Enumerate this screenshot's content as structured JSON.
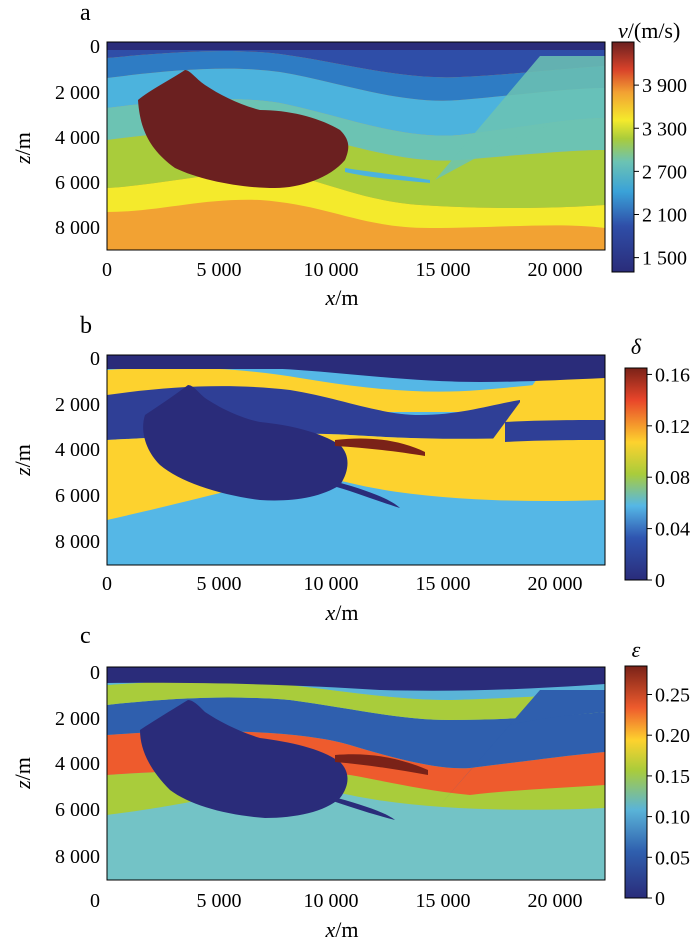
{
  "figure": {
    "panels": [
      "a",
      "b",
      "c"
    ]
  },
  "chart_data": [
    {
      "type": "heatmap",
      "panel_label": "a",
      "title": "",
      "x_var": "x",
      "x_unit": "/m",
      "y_var": "z",
      "y_unit": "/m",
      "xlim": [
        0,
        22200
      ],
      "ylim": [
        9200,
        0
      ],
      "x_ticks": [
        0,
        5000,
        10000,
        15000,
        20000
      ],
      "x_tick_labels": [
        "0",
        "5 000",
        "10 000",
        "15 000",
        "20 000"
      ],
      "y_ticks": [
        0,
        2000,
        4000,
        6000,
        8000
      ],
      "y_tick_labels": [
        "0",
        "2 000",
        "4 000",
        "6 000",
        "8 000"
      ],
      "colorbar": {
        "var": "v",
        "unit": "/(m/s)",
        "range": [
          1300,
          4500
        ],
        "ticks": [
          1500,
          2100,
          2700,
          3300,
          3900
        ],
        "tick_labels": [
          "1 500",
          "2 100",
          "2 700",
          "3 300",
          "3 900"
        ]
      },
      "regions": [
        {
          "name": "background",
          "value": 1500,
          "color": "#2a2c7a"
        },
        {
          "name": "layer-1",
          "value": 1900,
          "color": "#2f4ea8"
        },
        {
          "name": "layer-2",
          "value": 2250,
          "color": "#2e7cc4"
        },
        {
          "name": "layer-3",
          "value": 2500,
          "color": "#4cb3dd"
        },
        {
          "name": "layer-4",
          "value": 2750,
          "color": "#6cc3b3"
        },
        {
          "name": "layer-5",
          "value": 3100,
          "color": "#a9cc3b"
        },
        {
          "name": "layer-6",
          "value": 3500,
          "color": "#f4ea2c"
        },
        {
          "name": "layer-7",
          "value": 3800,
          "color": "#f2a233"
        },
        {
          "name": "salt-body",
          "value": 4400,
          "color": "#6b2020"
        }
      ]
    },
    {
      "type": "heatmap",
      "panel_label": "b",
      "title": "",
      "x_var": "x",
      "x_unit": "/m",
      "y_var": "z",
      "y_unit": "/m",
      "xlim": [
        0,
        22200
      ],
      "ylim": [
        9200,
        0
      ],
      "x_ticks": [
        0,
        5000,
        10000,
        15000,
        20000
      ],
      "x_tick_labels": [
        "0",
        "5 000",
        "10 000",
        "15 000",
        "20 000"
      ],
      "y_ticks": [
        0,
        2000,
        4000,
        6000,
        8000
      ],
      "y_tick_labels": [
        "0",
        "2 000",
        "4 000",
        "6 000",
        "8 000"
      ],
      "colorbar": {
        "var": "δ",
        "unit": "",
        "range": [
          0,
          0.165
        ],
        "ticks": [
          0,
          0.04,
          0.08,
          0.12,
          0.16
        ],
        "tick_labels": [
          "0",
          "0.04",
          "0.08",
          "0.12",
          "0.16"
        ]
      },
      "regions": [
        {
          "name": "background",
          "value": 0.0,
          "color": "#2a2c7a"
        },
        {
          "name": "layer-1",
          "value": 0.06,
          "color": "#55b7e6"
        },
        {
          "name": "layer-2",
          "value": 0.11,
          "color": "#fdd22e"
        },
        {
          "name": "layer-3",
          "value": 0.02,
          "color": "#2f3f96"
        },
        {
          "name": "lens",
          "value": 0.155,
          "color": "#7a2218"
        }
      ]
    },
    {
      "type": "heatmap",
      "panel_label": "c",
      "title": "",
      "x_var": "x",
      "x_unit": "/m",
      "y_var": "z",
      "y_unit": "/m",
      "xlim": [
        0,
        22200
      ],
      "ylim": [
        9200,
        0
      ],
      "x_ticks": [
        0,
        5000,
        10000,
        15000,
        20000
      ],
      "x_tick_labels": [
        "0",
        "5 000",
        "10 000",
        "15 000",
        "20 000"
      ],
      "y_ticks": [
        0,
        2000,
        4000,
        6000,
        8000
      ],
      "y_tick_labels": [
        "0",
        "2 000",
        "4 000",
        "6 000",
        "8 000"
      ],
      "colorbar": {
        "var": "ε",
        "unit": "",
        "range": [
          0,
          0.285
        ],
        "ticks": [
          0,
          0.05,
          0.1,
          0.15,
          0.2,
          0.25
        ],
        "tick_labels": [
          "0",
          "0.05",
          "0.10",
          "0.15",
          "0.20",
          "0.25"
        ]
      },
      "regions": [
        {
          "name": "background",
          "value": 0.0,
          "color": "#2a2c7a"
        },
        {
          "name": "layer-1",
          "value": 0.12,
          "color": "#5ab4d8"
        },
        {
          "name": "layer-2",
          "value": 0.16,
          "color": "#a9cc3b"
        },
        {
          "name": "layer-3",
          "value": 0.06,
          "color": "#2f5fae"
        },
        {
          "name": "layer-4",
          "value": 0.23,
          "color": "#ee5b2d"
        },
        {
          "name": "layer-5",
          "value": 0.11,
          "color": "#73c3c6"
        },
        {
          "name": "lens",
          "value": 0.28,
          "color": "#7a2218"
        }
      ]
    }
  ]
}
